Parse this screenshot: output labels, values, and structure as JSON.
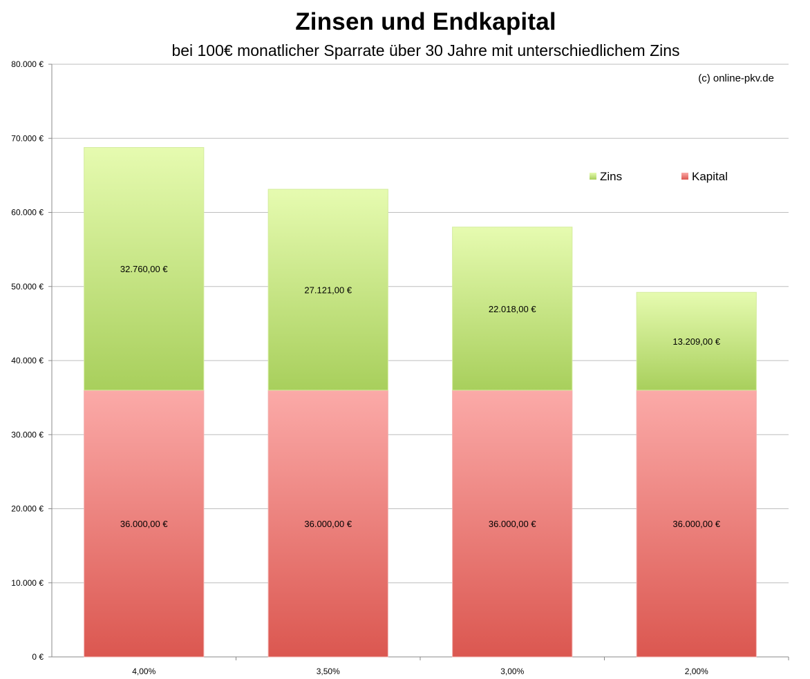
{
  "chart_data": {
    "type": "bar",
    "stacked": true,
    "title": "Zinsen und Endkapital",
    "subtitle": "bei 100€ monatlicher Sparrate über 30 Jahre mit unterschiedlichem Zins",
    "annotation": "(c) online-pkv.de",
    "categories": [
      "4,00%",
      "3,50%",
      "3,00%",
      "2,00%"
    ],
    "series": [
      {
        "name": "Kapital",
        "values": [
          36000,
          36000,
          36000,
          36000
        ],
        "labels": [
          "36.000,00 €",
          "36.000,00 €",
          "36.000,00 €",
          "36.000,00 €"
        ],
        "color_top": "#fbaaa8",
        "color_bottom": "#db5750"
      },
      {
        "name": "Zins",
        "values": [
          32760,
          27121,
          22018,
          13209
        ],
        "labels": [
          "32.760,00 €",
          "27.121,00 €",
          "22.018,00 €",
          "13.209,00 €"
        ],
        "color_top": "#e6fbb0",
        "color_bottom": "#a8cf5c"
      }
    ],
    "ylim": [
      0,
      80000
    ],
    "y_ticks": [
      0,
      10000,
      20000,
      30000,
      40000,
      50000,
      60000,
      70000,
      80000
    ],
    "y_tick_labels": [
      "0 €",
      "10.000 €",
      "20.000 €",
      "30.000 €",
      "40.000 €",
      "50.000 €",
      "60.000 €",
      "70.000 €",
      "80.000 €"
    ],
    "xlabel": "",
    "ylabel": "",
    "grid": true,
    "legend_position": "top-right"
  }
}
